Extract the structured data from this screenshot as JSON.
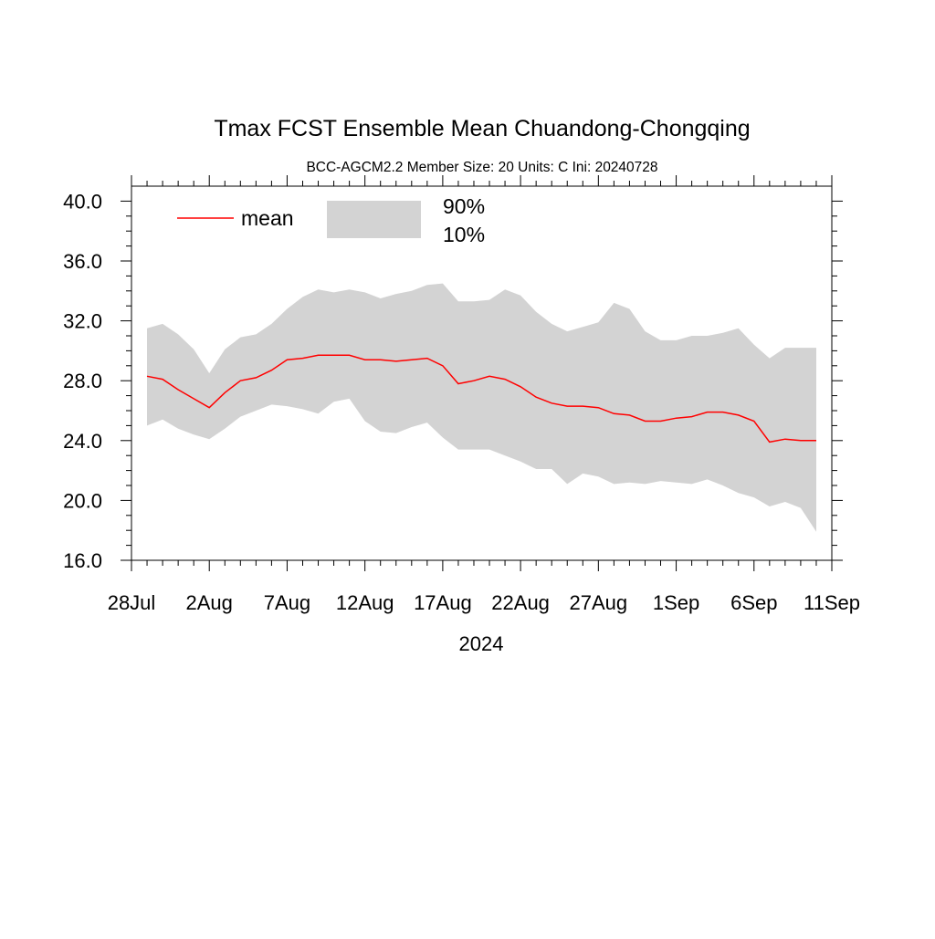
{
  "chart_data": {
    "type": "area",
    "title": "Tmax FCST Ensemble Mean  Chuandong-Chongqing",
    "subtitle": "BCC-AGCM2.2   Member Size: 20   Units: C   Ini: 20240728",
    "xlabel": "2024",
    "ylabel": "",
    "ylim": [
      16.0,
      41.0
    ],
    "y_ticks": [
      "16.0",
      "20.0",
      "24.0",
      "28.0",
      "32.0",
      "36.0",
      "40.0"
    ],
    "y_tick_values": [
      16,
      20,
      24,
      28,
      32,
      36,
      40
    ],
    "x_ticks": [
      "28Jul",
      "2Aug",
      "7Aug",
      "12Aug",
      "17Aug",
      "22Aug",
      "27Aug",
      "1Sep",
      "6Sep",
      "11Sep"
    ],
    "x_tick_days": [
      0,
      5,
      10,
      15,
      20,
      25,
      30,
      35,
      40,
      45
    ],
    "xlim_days": [
      0,
      45
    ],
    "grid": false,
    "legend": {
      "mean_label": "mean",
      "upper_label": "90%",
      "lower_label": "10%",
      "placement": "top-left"
    },
    "colors": {
      "mean": "#ff0000",
      "band": "#d3d3d3",
      "axis": "#000000"
    },
    "x_days": [
      1,
      2,
      3,
      4,
      5,
      6,
      7,
      8,
      9,
      10,
      11,
      12,
      13,
      14,
      15,
      16,
      17,
      18,
      19,
      20,
      21,
      22,
      23,
      24,
      25,
      26,
      27,
      28,
      29,
      30,
      31,
      32,
      33,
      34,
      35,
      36,
      37,
      38,
      39,
      40,
      41,
      42,
      43,
      44
    ],
    "series": [
      {
        "name": "mean",
        "values": [
          28.3,
          28.1,
          27.4,
          26.8,
          26.2,
          27.2,
          28.0,
          28.2,
          28.7,
          29.4,
          29.5,
          29.7,
          29.7,
          29.7,
          29.4,
          29.4,
          29.3,
          29.4,
          29.5,
          29.0,
          27.8,
          28.0,
          28.3,
          28.1,
          27.6,
          26.9,
          26.5,
          26.3,
          26.3,
          26.2,
          25.8,
          25.7,
          25.3,
          25.3,
          25.5,
          25.6,
          25.9,
          25.9,
          25.7,
          25.3,
          23.9,
          24.1,
          24.0,
          24.0
        ]
      },
      {
        "name": "90%",
        "values": [
          31.5,
          31.8,
          31.1,
          30.1,
          28.5,
          30.1,
          30.9,
          31.1,
          31.8,
          32.8,
          33.6,
          34.1,
          33.9,
          34.1,
          33.9,
          33.5,
          33.8,
          34.0,
          34.4,
          34.5,
          33.3,
          33.3,
          33.4,
          34.1,
          33.7,
          32.6,
          31.8,
          31.3,
          31.6,
          31.9,
          33.2,
          32.8,
          31.3,
          30.7,
          30.7,
          31.0,
          31.0,
          31.2,
          31.5,
          30.4,
          29.5,
          30.2,
          30.2,
          30.2
        ]
      },
      {
        "name": "10%",
        "values": [
          25.0,
          25.4,
          24.8,
          24.4,
          24.1,
          24.8,
          25.6,
          26.0,
          26.4,
          26.3,
          26.1,
          25.8,
          26.6,
          26.8,
          25.3,
          24.6,
          24.5,
          24.9,
          25.2,
          24.2,
          23.4,
          23.4,
          23.4,
          23.0,
          22.6,
          22.1,
          22.1,
          21.1,
          21.8,
          21.6,
          21.1,
          21.2,
          21.1,
          21.3,
          21.2,
          21.1,
          21.4,
          21.0,
          20.5,
          20.2,
          19.6,
          19.9,
          19.5,
          17.9
        ]
      }
    ]
  }
}
